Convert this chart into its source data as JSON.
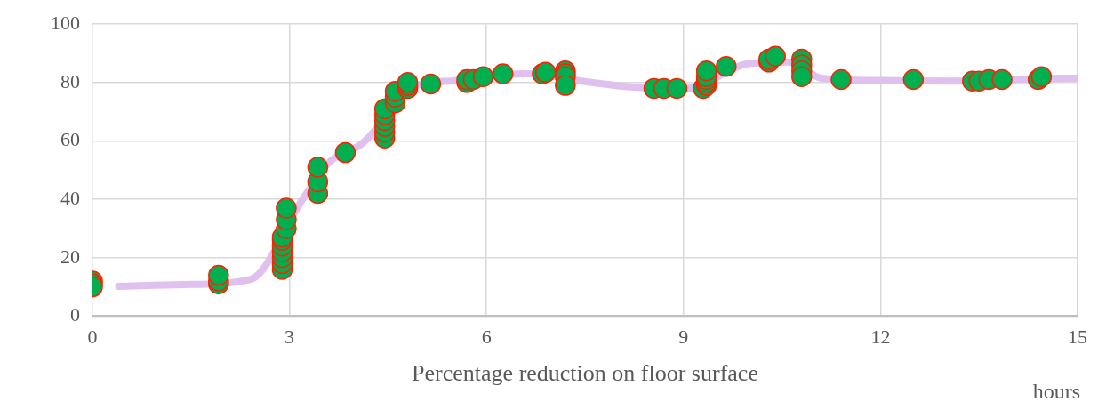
{
  "chart_data": {
    "type": "scatter",
    "xlabel": "Percentage reduction on floor surface",
    "annotations": [
      "hours"
    ],
    "xlim": [
      0,
      15
    ],
    "xticks": [
      0,
      3,
      6,
      9,
      12,
      15
    ],
    "ylim": [
      0,
      100
    ],
    "yticks": [
      0,
      20,
      40,
      60,
      80,
      100
    ],
    "grid": true,
    "legend": false,
    "marker": "circle",
    "series": [
      {
        "type": "line",
        "marker": "none",
        "color": "#dfc0ef",
        "x": [
          0.4,
          1.4,
          2.4,
          3.2,
          3.62,
          4.1,
          5.0,
          5.45,
          6.6,
          7.6,
          8.2,
          9.05,
          10.0,
          10.6,
          11.1,
          12.0,
          13.0,
          14.1,
          14.75,
          15
        ],
        "values": [
          10.2,
          10.8,
          12.5,
          40,
          53,
          59,
          79.5,
          80.5,
          83,
          80,
          78.5,
          78,
          86.5,
          87,
          81.5,
          80.7,
          80.5,
          81,
          81.5,
          81.5
        ]
      },
      {
        "color": "#00b050",
        "x": [
          0,
          0,
          0,
          1.92,
          1.92,
          1.92,
          2.89,
          2.89,
          2.89,
          2.89,
          2.89,
          2.89,
          2.89,
          2.95,
          2.95,
          2.95,
          3.43,
          3.43,
          3.43,
          3.85,
          4.45,
          4.45,
          4.45,
          4.45,
          4.45,
          4.45,
          4.61,
          4.61,
          4.61,
          4.8,
          4.8,
          4.8,
          5.15,
          5.7,
          5.7,
          5.8,
          5.95,
          6.25,
          6.85,
          6.9,
          7.2,
          7.2,
          7.2,
          7.2,
          8.55,
          8.7,
          8.9,
          9.3,
          9.35,
          9.35,
          9.35,
          9.35,
          9.35,
          9.65,
          10.3,
          10.3,
          10.4,
          10.8,
          10.8,
          10.8,
          10.8,
          11.4,
          12.5,
          13.4,
          13.5,
          13.65,
          13.85,
          14.4,
          14.45
        ],
        "values": [
          12,
          11,
          10,
          11,
          12,
          14,
          16,
          18,
          20,
          22,
          24,
          26,
          27,
          30,
          33,
          37,
          42,
          46,
          51,
          56,
          61,
          63,
          65,
          67,
          69,
          71,
          73,
          75,
          77,
          78,
          79,
          80,
          79.5,
          80,
          81,
          81,
          82,
          83,
          83,
          83.5,
          84,
          83,
          82,
          79,
          78,
          78,
          78,
          78,
          79,
          80,
          81,
          82,
          84,
          85.5,
          87,
          88,
          89,
          88,
          86,
          84,
          82,
          81,
          81,
          80.5,
          80.5,
          81,
          81,
          81,
          82
        ]
      }
    ]
  }
}
